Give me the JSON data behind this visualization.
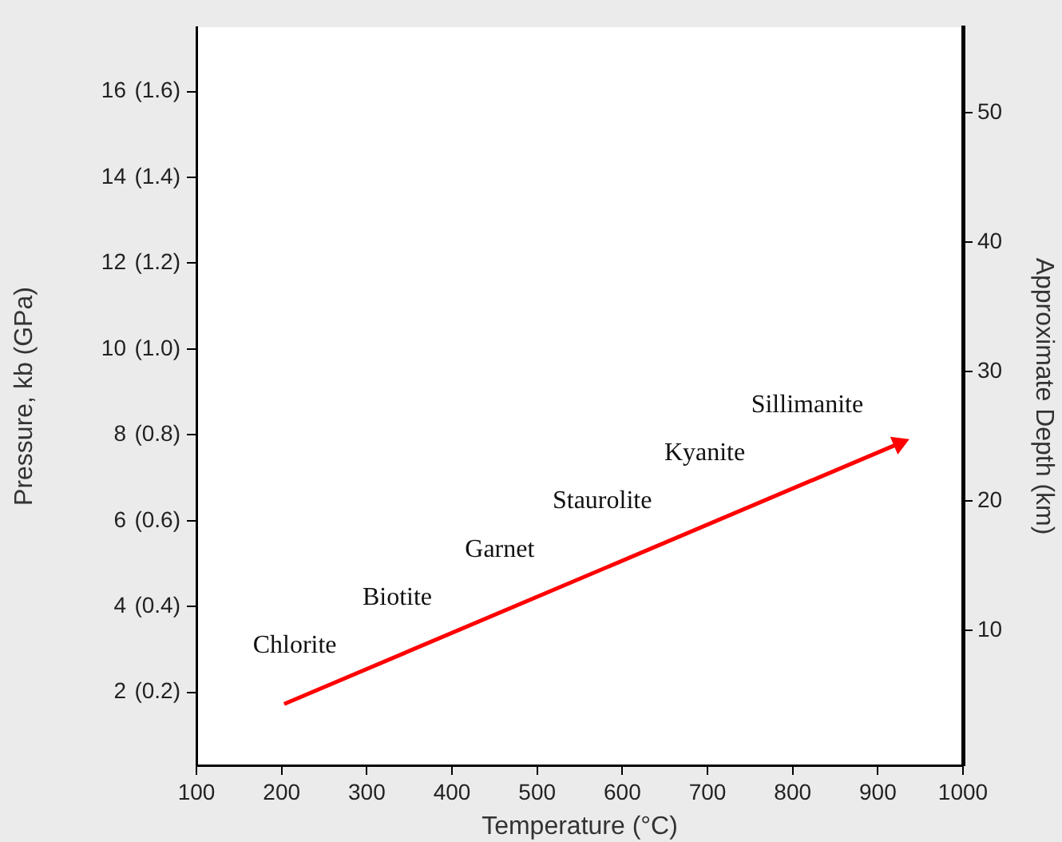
{
  "chart_data": {
    "type": "line",
    "xlabel": "Temperature (°C)",
    "ylabel": "Pressure, kb (GPa)",
    "y2label": "Approximate Depth (km)",
    "xlim": [
      100,
      1000
    ],
    "xticks": [
      100,
      200,
      300,
      400,
      500,
      600,
      700,
      800,
      900,
      1000
    ],
    "ylim": [
      0.3,
      17.5
    ],
    "yticks": [
      2,
      4,
      6,
      8,
      10,
      12,
      14,
      16
    ],
    "y3lim": [
      0.03,
      1.75
    ],
    "y3ticks": [
      {
        "value": 0.2,
        "label": "(0.2)"
      },
      {
        "value": 0.4,
        "label": "(0.4)"
      },
      {
        "value": 0.6,
        "label": "(0.6)"
      },
      {
        "value": 0.8,
        "label": "(0.8)"
      },
      {
        "value": 1.0,
        "label": "(1.0)"
      },
      {
        "value": 1.2,
        "label": "(1.2)"
      },
      {
        "value": 1.4,
        "label": "(1.4)"
      },
      {
        "value": 1.6,
        "label": "(1.6)"
      }
    ],
    "y2lim": [
      -0.4,
      56.6
    ],
    "y2ticks": [
      10,
      20,
      30,
      40,
      50
    ],
    "series": [
      {
        "x": [
          203,
          925
        ],
        "values": [
          1.73,
          7.8
        ],
        "color": "#ff0000"
      }
    ],
    "line_style": "solid",
    "grid": false,
    "legend": false,
    "annotations": [
      "Chlorite",
      "Biotite",
      "Garnet",
      "Staurolite",
      "Kyanite",
      "Sillimanite"
    ]
  }
}
